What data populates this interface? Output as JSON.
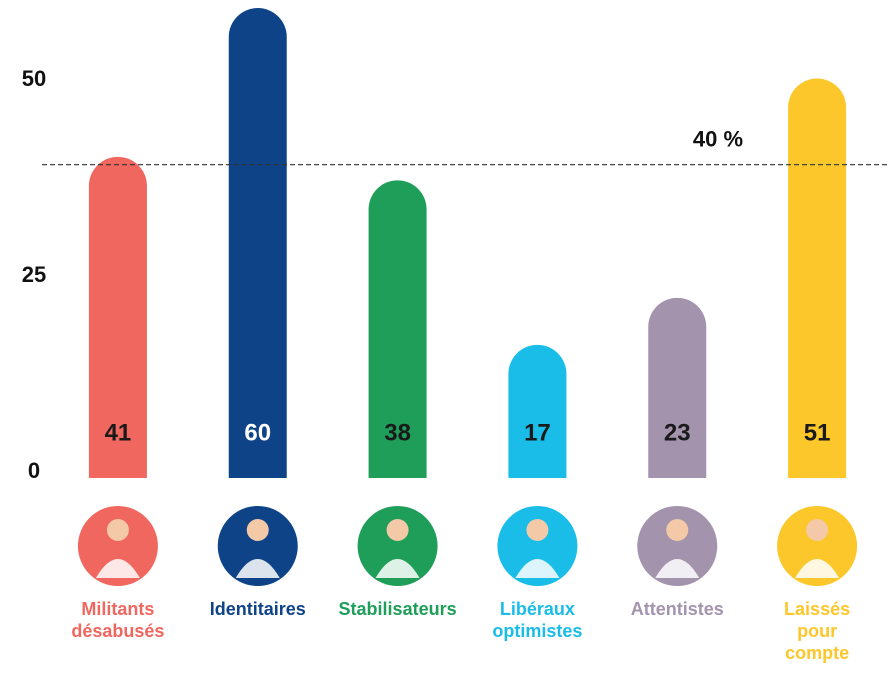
{
  "chart_data": {
    "type": "bar",
    "categories": [
      "Militants désabusés",
      "Identitaires",
      "Stabilisateurs",
      "Libéraux optimistes",
      "Attentistes",
      "Laissés pour compte"
    ],
    "values": [
      41,
      60,
      38,
      17,
      23,
      51
    ],
    "colors": [
      "#f0675f",
      "#0e4487",
      "#1f9e5a",
      "#19bde8",
      "#a393ad",
      "#fcc72a"
    ],
    "ylim": [
      0,
      60
    ],
    "yticks": [
      0,
      25,
      50
    ],
    "reference_line": {
      "value": 40,
      "label": "40 %"
    }
  }
}
